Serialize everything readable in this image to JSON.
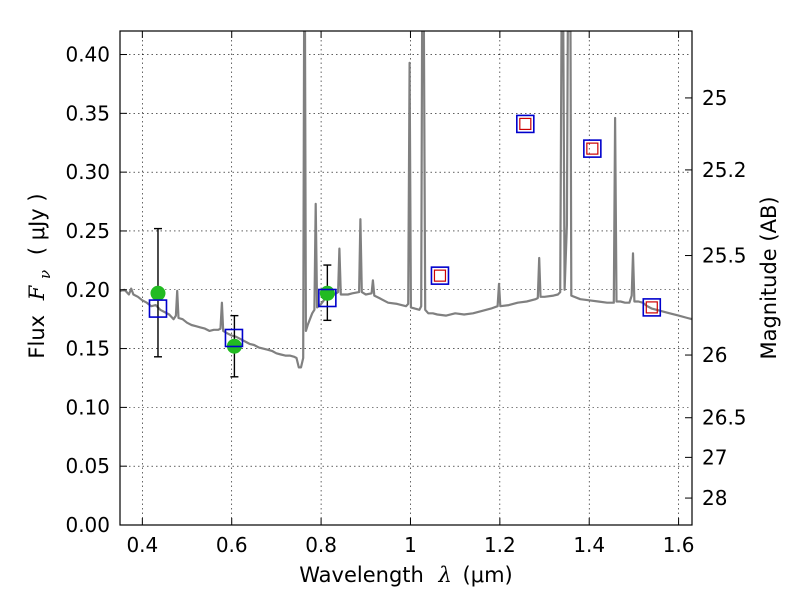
{
  "chart_data": {
    "type": "line",
    "xlabel_text": "Wavelength",
    "xlabel_symbol": "λ",
    "xlabel_unit": "(μm)",
    "ylabel_text": "Flux",
    "ylabel_symbol": "F",
    "ylabel_subscript": "ν",
    "ylabel_unit": "( μJy )",
    "y2label": "Magnitude (AB)",
    "xlim": [
      0.35,
      1.63
    ],
    "ylim": [
      0.0,
      0.42
    ],
    "grid": true,
    "x_ticks": [
      {
        "value": 0.4,
        "label": "0.4"
      },
      {
        "value": 0.6,
        "label": "0.6"
      },
      {
        "value": 0.8,
        "label": "0.8"
      },
      {
        "value": 1.0,
        "label": "1"
      },
      {
        "value": 1.2,
        "label": "1.2"
      },
      {
        "value": 1.4,
        "label": "1.4"
      },
      {
        "value": 1.6,
        "label": "1.6"
      }
    ],
    "y_ticks": [
      {
        "value": 0.0,
        "label": "0.00"
      },
      {
        "value": 0.05,
        "label": "0.05"
      },
      {
        "value": 0.1,
        "label": "0.10"
      },
      {
        "value": 0.15,
        "label": "0.15"
      },
      {
        "value": 0.2,
        "label": "0.20"
      },
      {
        "value": 0.25,
        "label": "0.25"
      },
      {
        "value": 0.3,
        "label": "0.30"
      },
      {
        "value": 0.35,
        "label": "0.35"
      },
      {
        "value": 0.4,
        "label": "0.40"
      }
    ],
    "y2_ticks": [
      {
        "flux": 0.3631,
        "label": "25"
      },
      {
        "flux": 0.3019,
        "label": "25.2"
      },
      {
        "flux": 0.2291,
        "label": "25.5"
      },
      {
        "flux": 0.1445,
        "label": "26"
      },
      {
        "flux": 0.0912,
        "label": "26.5"
      },
      {
        "flux": 0.0575,
        "label": "27"
      },
      {
        "flux": 0.0229,
        "label": "28"
      }
    ],
    "spectrum": {
      "color": "#808080",
      "points": [
        [
          0.35,
          0.199
        ],
        [
          0.36,
          0.2
        ],
        [
          0.37,
          0.196
        ],
        [
          0.375,
          0.201
        ],
        [
          0.38,
          0.196
        ],
        [
          0.39,
          0.194
        ],
        [
          0.4,
          0.191
        ],
        [
          0.41,
          0.189
        ],
        [
          0.42,
          0.186
        ],
        [
          0.43,
          0.187
        ],
        [
          0.44,
          0.183
        ],
        [
          0.45,
          0.181
        ],
        [
          0.46,
          0.179
        ],
        [
          0.47,
          0.175
        ],
        [
          0.475,
          0.178
        ],
        [
          0.478,
          0.199
        ],
        [
          0.481,
          0.176
        ],
        [
          0.49,
          0.175
        ],
        [
          0.5,
          0.172
        ],
        [
          0.51,
          0.17
        ],
        [
          0.52,
          0.169
        ],
        [
          0.53,
          0.168
        ],
        [
          0.54,
          0.167
        ],
        [
          0.55,
          0.165
        ],
        [
          0.56,
          0.166
        ],
        [
          0.57,
          0.166
        ],
        [
          0.575,
          0.167
        ],
        [
          0.578,
          0.189
        ],
        [
          0.581,
          0.165
        ],
        [
          0.59,
          0.163
        ],
        [
          0.6,
          0.161
        ],
        [
          0.61,
          0.16
        ],
        [
          0.62,
          0.158
        ],
        [
          0.63,
          0.156
        ],
        [
          0.64,
          0.154
        ],
        [
          0.65,
          0.153
        ],
        [
          0.66,
          0.151
        ],
        [
          0.67,
          0.15
        ],
        [
          0.68,
          0.149
        ],
        [
          0.69,
          0.148
        ],
        [
          0.7,
          0.146
        ],
        [
          0.71,
          0.145
        ],
        [
          0.72,
          0.144
        ],
        [
          0.73,
          0.144
        ],
        [
          0.74,
          0.143
        ],
        [
          0.745,
          0.142
        ],
        [
          0.75,
          0.134
        ],
        [
          0.755,
          0.134
        ],
        [
          0.76,
          0.142
        ],
        [
          0.762,
          0.42
        ],
        [
          0.764,
          0.42
        ],
        [
          0.766,
          0.165
        ],
        [
          0.77,
          0.17
        ],
        [
          0.78,
          0.18
        ],
        [
          0.785,
          0.183
        ],
        [
          0.788,
          0.273
        ],
        [
          0.791,
          0.185
        ],
        [
          0.8,
          0.188
        ],
        [
          0.81,
          0.193
        ],
        [
          0.82,
          0.196
        ],
        [
          0.83,
          0.196
        ],
        [
          0.838,
          0.198
        ],
        [
          0.841,
          0.235
        ],
        [
          0.844,
          0.196
        ],
        [
          0.86,
          0.196
        ],
        [
          0.87,
          0.197
        ],
        [
          0.885,
          0.198
        ],
        [
          0.888,
          0.26
        ],
        [
          0.891,
          0.198
        ],
        [
          0.9,
          0.196
        ],
        [
          0.913,
          0.197
        ],
        [
          0.916,
          0.208
        ],
        [
          0.919,
          0.195
        ],
        [
          0.93,
          0.193
        ],
        [
          0.95,
          0.189
        ],
        [
          0.97,
          0.188
        ],
        [
          0.99,
          0.186
        ],
        [
          0.995,
          0.188
        ],
        [
          0.998,
          0.393
        ],
        [
          1.001,
          0.185
        ],
        [
          1.01,
          0.184
        ],
        [
          1.02,
          0.183
        ],
        [
          1.024,
          0.186
        ],
        [
          1.026,
          0.42
        ],
        [
          1.03,
          0.42
        ],
        [
          1.033,
          0.183
        ],
        [
          1.04,
          0.18
        ],
        [
          1.05,
          0.18
        ],
        [
          1.06,
          0.179
        ],
        [
          1.08,
          0.178
        ],
        [
          1.1,
          0.18
        ],
        [
          1.12,
          0.179
        ],
        [
          1.14,
          0.18
        ],
        [
          1.16,
          0.182
        ],
        [
          1.18,
          0.184
        ],
        [
          1.195,
          0.186
        ],
        [
          1.198,
          0.205
        ],
        [
          1.201,
          0.186
        ],
        [
          1.22,
          0.187
        ],
        [
          1.24,
          0.189
        ],
        [
          1.26,
          0.19
        ],
        [
          1.28,
          0.192
        ],
        [
          1.285,
          0.193
        ],
        [
          1.288,
          0.227
        ],
        [
          1.291,
          0.194
        ],
        [
          1.3,
          0.194
        ],
        [
          1.32,
          0.195
        ],
        [
          1.33,
          0.196
        ],
        [
          1.335,
          0.198
        ],
        [
          1.338,
          0.42
        ],
        [
          1.342,
          0.42
        ],
        [
          1.345,
          0.2
        ],
        [
          1.35,
          0.255
        ],
        [
          1.352,
          0.42
        ],
        [
          1.358,
          0.42
        ],
        [
          1.36,
          0.195
        ],
        [
          1.38,
          0.192
        ],
        [
          1.4,
          0.191
        ],
        [
          1.42,
          0.19
        ],
        [
          1.44,
          0.189
        ],
        [
          1.455,
          0.189
        ],
        [
          1.458,
          0.346
        ],
        [
          1.461,
          0.19
        ],
        [
          1.47,
          0.19
        ],
        [
          1.48,
          0.189
        ],
        [
          1.49,
          0.189
        ],
        [
          1.495,
          0.195
        ],
        [
          1.498,
          0.231
        ],
        [
          1.501,
          0.19
        ],
        [
          1.51,
          0.19
        ],
        [
          1.52,
          0.189
        ],
        [
          1.53,
          0.186
        ],
        [
          1.54,
          0.184
        ],
        [
          1.56,
          0.182
        ],
        [
          1.58,
          0.18
        ],
        [
          1.6,
          0.178
        ],
        [
          1.62,
          0.176
        ],
        [
          1.63,
          0.175
        ]
      ]
    },
    "model_photometry": [
      {
        "x": 0.435,
        "y": 0.184,
        "outer_color": "#0000cc"
      },
      {
        "x": 0.605,
        "y": 0.159,
        "outer_color": "#0000cc"
      },
      {
        "x": 0.814,
        "y": 0.193,
        "outer_color": "#0000cc"
      },
      {
        "x": 1.066,
        "y": 0.212,
        "outer_color": "#0000cc",
        "inner_color": "#cc0000"
      },
      {
        "x": 1.257,
        "y": 0.341,
        "outer_color": "#0000cc",
        "inner_color": "#cc0000"
      },
      {
        "x": 1.407,
        "y": 0.32,
        "outer_color": "#0000cc",
        "inner_color": "#cc0000"
      },
      {
        "x": 1.54,
        "y": 0.185,
        "outer_color": "#0000cc",
        "inner_color": "#cc0000"
      }
    ],
    "observed_photometry": [
      {
        "x": 0.435,
        "y": 0.197,
        "err_low": 0.143,
        "err_high": 0.252
      },
      {
        "x": 0.606,
        "y": 0.152,
        "err_low": 0.126,
        "err_high": 0.178
      },
      {
        "x": 0.814,
        "y": 0.197,
        "err_low": 0.174,
        "err_high": 0.221
      }
    ],
    "observed_color": "#22bb22"
  }
}
